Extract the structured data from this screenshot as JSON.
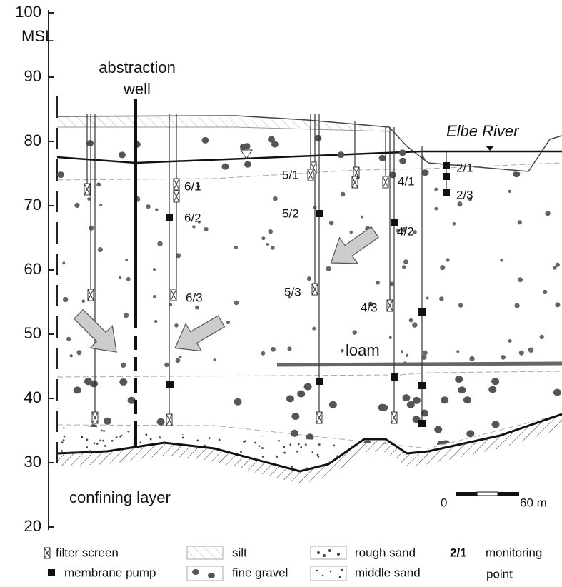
{
  "axis": {
    "unit": "MSL",
    "ticks": [
      100,
      90,
      80,
      70,
      60,
      50,
      40,
      30,
      20
    ]
  },
  "labels": {
    "well": [
      "abstraction",
      "well"
    ],
    "river": "Elbe River",
    "loam": "loam",
    "confining": "confining layer"
  },
  "monitoring_points": [
    "6/1",
    "6/2",
    "6/3",
    "5/1",
    "5/2",
    "5/3",
    "4/1",
    "4/2",
    "4/3",
    "2/1",
    "2/3"
  ],
  "scale": {
    "start": "0",
    "end": "60 m"
  },
  "legend": {
    "filter_screen": "filter screen",
    "membrane_pump": "membrane pump",
    "silt": "silt",
    "fine_gravel": "fine gravel",
    "rough_sand": "rough sand",
    "middle_sand": "middle sand",
    "example": "2/1",
    "monitoring_point": [
      "monitoring",
      "point"
    ]
  }
}
